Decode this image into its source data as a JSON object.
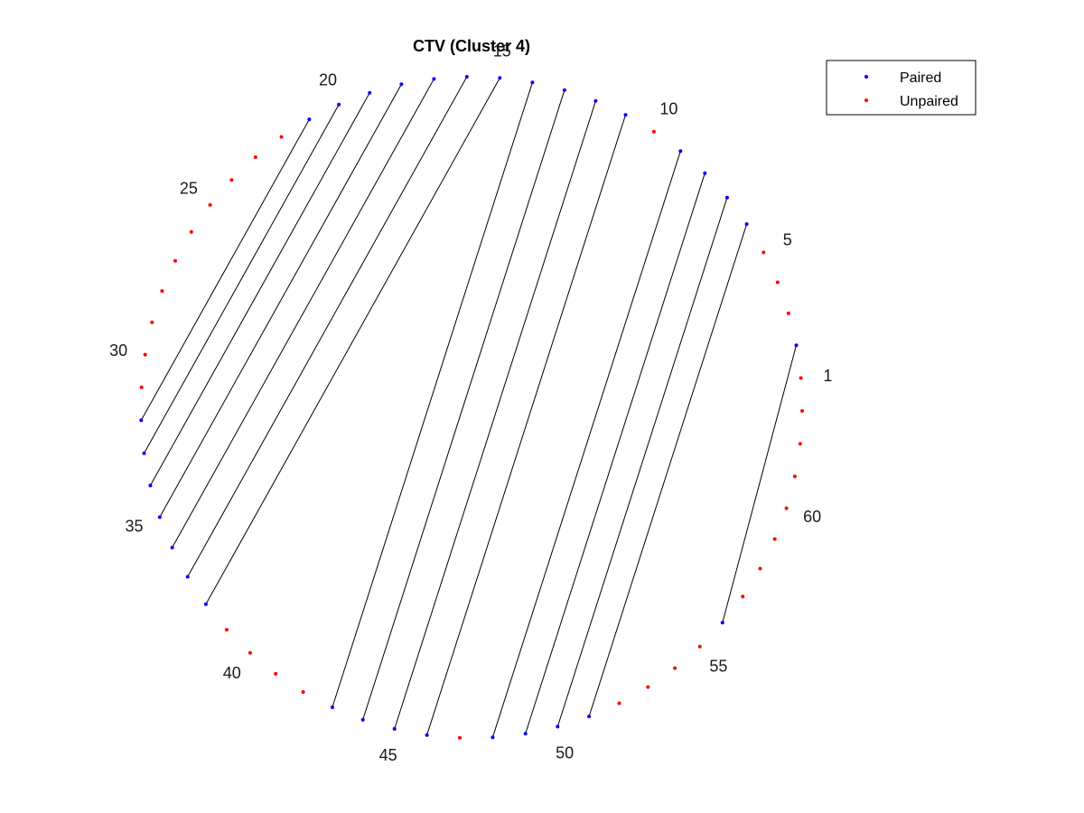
{
  "chart_data": {
    "type": "scatter",
    "title": "CTV (Cluster 4)",
    "n_positions": 63,
    "position_labels": [
      1,
      5,
      10,
      15,
      20,
      25,
      30,
      35,
      40,
      45,
      50,
      55,
      60
    ],
    "pairs": [
      [
        2,
        56
      ],
      [
        6,
        51
      ],
      [
        7,
        50
      ],
      [
        8,
        49
      ],
      [
        9,
        48
      ],
      [
        11,
        46
      ],
      [
        12,
        45
      ],
      [
        13,
        44
      ],
      [
        14,
        43
      ],
      [
        15,
        38
      ],
      [
        16,
        37
      ],
      [
        17,
        36
      ],
      [
        18,
        35
      ],
      [
        19,
        34
      ],
      [
        20,
        33
      ],
      [
        21,
        32
      ]
    ],
    "legend": {
      "placement": "top-right",
      "entries": [
        {
          "name": "Paired",
          "color": "#0000ff"
        },
        {
          "name": "Unpaired",
          "color": "#ff0000"
        }
      ]
    },
    "colors": {
      "paired": "#0000ff",
      "unpaired": "#ff0000",
      "pair_line": "#000000"
    }
  }
}
